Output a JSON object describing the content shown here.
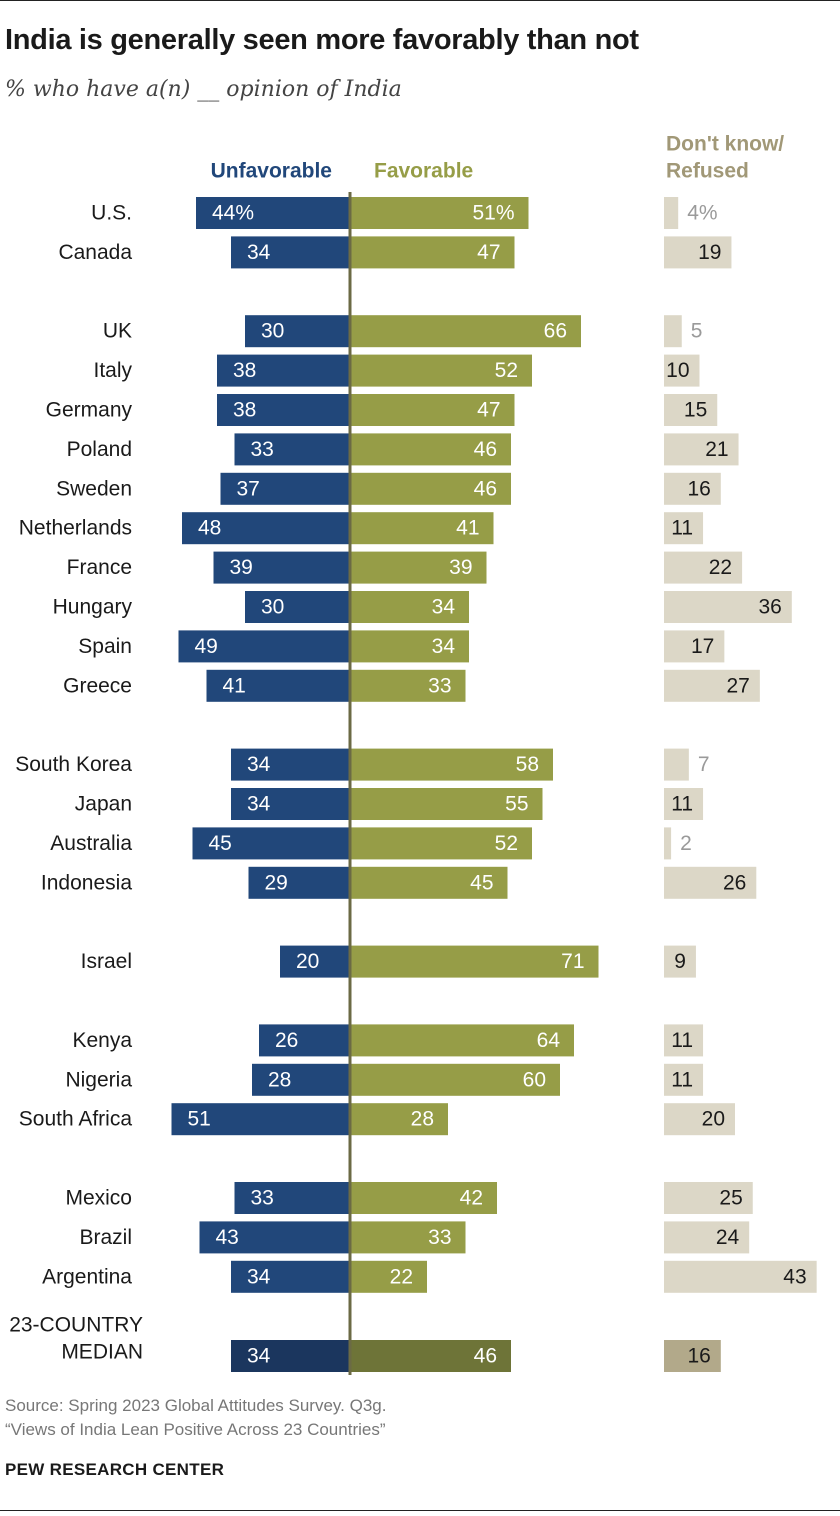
{
  "title": "India is generally seen more favorably than not",
  "subtitle": "% who have a(n) __ opinion of India",
  "source_line1": "Source: Spring 2023 Global Attitudes Survey. Q3g.",
  "source_line2": "“Views of India Lean Positive Across 23 Countries”",
  "brand": "PEW RESEARCH CENTER",
  "colors": {
    "unfavorable": "#21477a",
    "favorable": "#969d47",
    "dk": "#dcd7c7",
    "median_unfavorable": "#1b365e",
    "median_favorable": "#6e7438",
    "median_dk": "#b2a98a",
    "axis": "#6b6a45",
    "dk_header": "#a19877",
    "dk_small_label": "#9a9a9a"
  },
  "chart_data": {
    "type": "bar",
    "orientation": "diverging-horizontal",
    "legend": {
      "unfavorable": "Unfavorable",
      "favorable": "Favorable",
      "dk_line1": "Don't know/",
      "dk_line2": "Refused"
    },
    "rows": [
      {
        "country": "U.S.",
        "unfavorable": 44,
        "favorable": 51,
        "dk": 4,
        "unf_label": "44%",
        "fav_label": "51%",
        "dk_label": "4%",
        "group": 1
      },
      {
        "country": "Canada",
        "unfavorable": 34,
        "favorable": 47,
        "dk": 19,
        "unf_label": "34",
        "fav_label": "47",
        "dk_label": "19",
        "group": 1
      },
      {
        "country": "UK",
        "unfavorable": 30,
        "favorable": 66,
        "dk": 5,
        "unf_label": "30",
        "fav_label": "66",
        "dk_label": "5",
        "group": 2
      },
      {
        "country": "Italy",
        "unfavorable": 38,
        "favorable": 52,
        "dk": 10,
        "unf_label": "38",
        "fav_label": "52",
        "dk_label": "10",
        "group": 2
      },
      {
        "country": "Germany",
        "unfavorable": 38,
        "favorable": 47,
        "dk": 15,
        "unf_label": "38",
        "fav_label": "47",
        "dk_label": "15",
        "group": 2
      },
      {
        "country": "Poland",
        "unfavorable": 33,
        "favorable": 46,
        "dk": 21,
        "unf_label": "33",
        "fav_label": "46",
        "dk_label": "21",
        "group": 2
      },
      {
        "country": "Sweden",
        "unfavorable": 37,
        "favorable": 46,
        "dk": 16,
        "unf_label": "37",
        "fav_label": "46",
        "dk_label": "16",
        "group": 2
      },
      {
        "country": "Netherlands",
        "unfavorable": 48,
        "favorable": 41,
        "dk": 11,
        "unf_label": "48",
        "fav_label": "41",
        "dk_label": "11",
        "group": 2
      },
      {
        "country": "France",
        "unfavorable": 39,
        "favorable": 39,
        "dk": 22,
        "unf_label": "39",
        "fav_label": "39",
        "dk_label": "22",
        "group": 2
      },
      {
        "country": "Hungary",
        "unfavorable": 30,
        "favorable": 34,
        "dk": 36,
        "unf_label": "30",
        "fav_label": "34",
        "dk_label": "36",
        "group": 2
      },
      {
        "country": "Spain",
        "unfavorable": 49,
        "favorable": 34,
        "dk": 17,
        "unf_label": "49",
        "fav_label": "34",
        "dk_label": "17",
        "group": 2
      },
      {
        "country": "Greece",
        "unfavorable": 41,
        "favorable": 33,
        "dk": 27,
        "unf_label": "41",
        "fav_label": "33",
        "dk_label": "27",
        "group": 2
      },
      {
        "country": "South Korea",
        "unfavorable": 34,
        "favorable": 58,
        "dk": 7,
        "unf_label": "34",
        "fav_label": "58",
        "dk_label": "7",
        "group": 3
      },
      {
        "country": "Japan",
        "unfavorable": 34,
        "favorable": 55,
        "dk": 11,
        "unf_label": "34",
        "fav_label": "55",
        "dk_label": "11",
        "group": 3
      },
      {
        "country": "Australia",
        "unfavorable": 45,
        "favorable": 52,
        "dk": 2,
        "unf_label": "45",
        "fav_label": "52",
        "dk_label": "2",
        "group": 3
      },
      {
        "country": "Indonesia",
        "unfavorable": 29,
        "favorable": 45,
        "dk": 26,
        "unf_label": "29",
        "fav_label": "45",
        "dk_label": "26",
        "group": 3
      },
      {
        "country": "Israel",
        "unfavorable": 20,
        "favorable": 71,
        "dk": 9,
        "unf_label": "20",
        "fav_label": "71",
        "dk_label": "9",
        "group": 4
      },
      {
        "country": "Kenya",
        "unfavorable": 26,
        "favorable": 64,
        "dk": 11,
        "unf_label": "26",
        "fav_label": "64",
        "dk_label": "11",
        "group": 5
      },
      {
        "country": "Nigeria",
        "unfavorable": 28,
        "favorable": 60,
        "dk": 11,
        "unf_label": "28",
        "fav_label": "60",
        "dk_label": "11",
        "group": 5
      },
      {
        "country": "South Africa",
        "unfavorable": 51,
        "favorable": 28,
        "dk": 20,
        "unf_label": "51",
        "fav_label": "28",
        "dk_label": "20",
        "group": 5
      },
      {
        "country": "Mexico",
        "unfavorable": 33,
        "favorable": 42,
        "dk": 25,
        "unf_label": "33",
        "fav_label": "42",
        "dk_label": "25",
        "group": 6
      },
      {
        "country": "Brazil",
        "unfavorable": 43,
        "favorable": 33,
        "dk": 24,
        "unf_label": "43",
        "fav_label": "33",
        "dk_label": "24",
        "group": 6
      },
      {
        "country": "Argentina",
        "unfavorable": 34,
        "favorable": 22,
        "dk": 43,
        "unf_label": "34",
        "fav_label": "22",
        "dk_label": "43",
        "group": 6
      }
    ],
    "median": {
      "label_line1": "23-COUNTRY",
      "label_line2": "MEDIAN",
      "unfavorable": 34,
      "favorable": 46,
      "dk": 16,
      "unf_label": "34",
      "fav_label": "46",
      "dk_label": "16"
    }
  }
}
